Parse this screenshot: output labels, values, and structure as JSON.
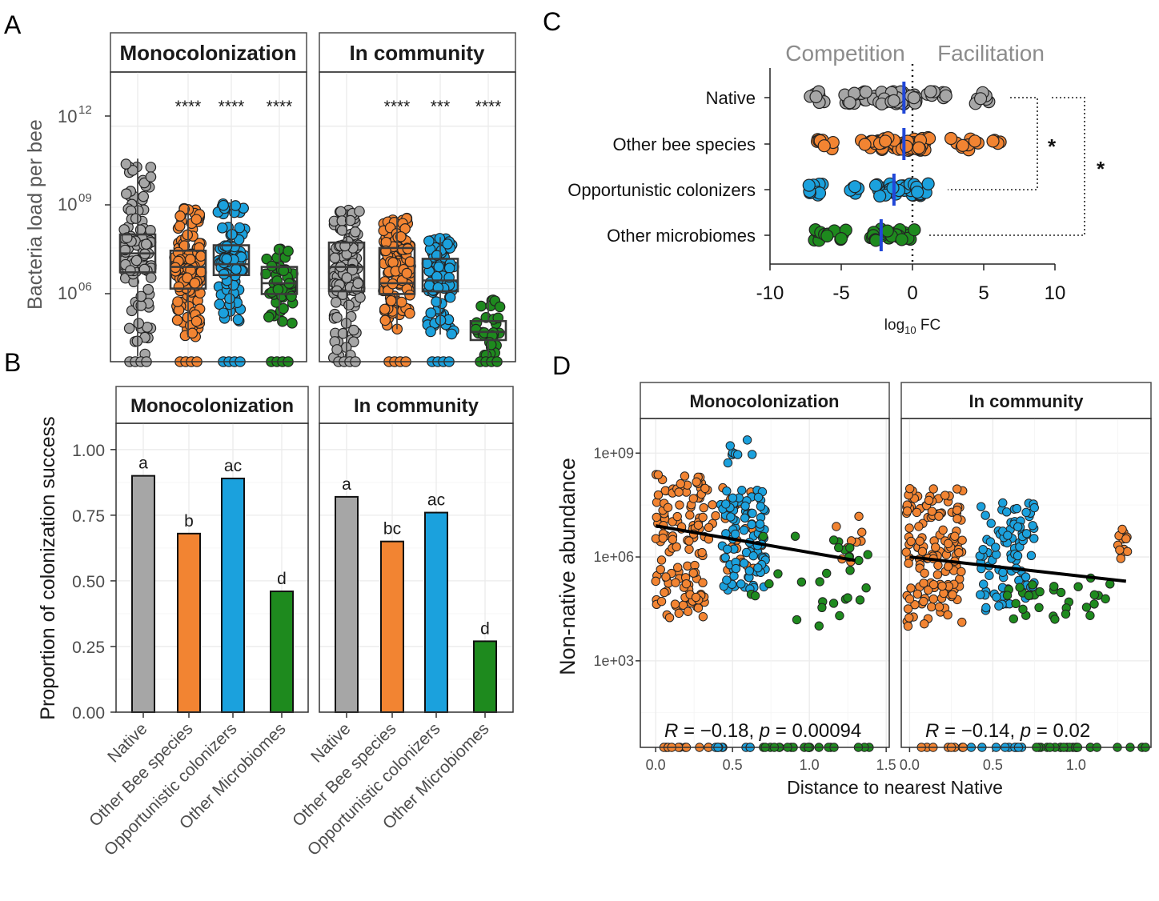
{
  "panel_letters": [
    "A",
    "B",
    "C",
    "D"
  ],
  "colors": {
    "Native": "#a6a6a6",
    "Other bee species": "#f28432",
    "Opportunistic colonizers": "#1ba1dd",
    "Other microbiomes": "#1e8a1e",
    "median_line": "#2147d8",
    "strip_fill": "#ffffff",
    "grid": "#ebebeb"
  },
  "chart_data": [
    {
      "id": "A",
      "type": "boxplot",
      "ylabel": "Bacteria load per bee",
      "yscale": "log10",
      "ytick_bases": [
        "10",
        "10",
        "10"
      ],
      "ytick_exps": [
        "12",
        "09",
        "06"
      ],
      "ylim_log10": [
        3.3,
        14.0
      ],
      "categories": [
        "Native",
        "Other bee species",
        "Opportunistic colonizers",
        "Other microbiomes"
      ],
      "facets": [
        {
          "name": "Monocolonization",
          "significance": [
            "",
            "****",
            "****",
            "****"
          ],
          "boxes_log10": [
            {
              "q1": 6.6,
              "median": 7.3,
              "q3": 8.0,
              "whisker_low": 3.5,
              "whisker_high": 10.8
            },
            {
              "q1": 6.0,
              "median": 6.8,
              "q3": 7.4,
              "whisker_low": 4.2,
              "whisker_high": 9.0
            },
            {
              "q1": 6.5,
              "median": 6.9,
              "q3": 7.6,
              "whisker_low": 4.8,
              "whisker_high": 9.3
            },
            {
              "q1": 5.8,
              "median": 6.2,
              "q3": 6.8,
              "whisker_low": 4.7,
              "whisker_high": 7.5
            }
          ]
        },
        {
          "name": "In community",
          "significance": [
            "",
            "****",
            "***",
            "****"
          ],
          "boxes_log10": [
            {
              "q1": 5.9,
              "median": 6.8,
              "q3": 7.7,
              "whisker_low": 3.4,
              "whisker_high": 8.9
            },
            {
              "q1": 5.8,
              "median": 6.2,
              "q3": 7.5,
              "whisker_low": 4.5,
              "whisker_high": 8.6
            },
            {
              "q1": 5.9,
              "median": 6.3,
              "q3": 7.1,
              "whisker_low": 4.3,
              "whisker_high": 7.9
            },
            {
              "q1": 4.1,
              "median": 4.4,
              "q3": 4.8,
              "whisker_low": 3.5,
              "whisker_high": 5.6
            }
          ]
        }
      ]
    },
    {
      "id": "B",
      "type": "bar",
      "ylabel": "Proportion of colonization success",
      "ylim": [
        0,
        1.1
      ],
      "yticks": [
        "0.00",
        "0.25",
        "0.50",
        "0.75",
        "1.00"
      ],
      "categories": [
        "Native",
        "Other Bee species",
        "Opportunistic colonizers",
        "Other Microbiomes"
      ],
      "facets": [
        {
          "name": "Monocolonization",
          "values": [
            0.9,
            0.68,
            0.89,
            0.46
          ],
          "letters": [
            "a",
            "b",
            "ac",
            "d"
          ]
        },
        {
          "name": "In community",
          "values": [
            0.82,
            0.65,
            0.76,
            0.27
          ],
          "letters": [
            "a",
            "bc",
            "ac",
            "d"
          ]
        }
      ]
    },
    {
      "id": "C",
      "type": "dotplot",
      "xlabel_main": "log",
      "xlabel_sub": "10",
      "xlabel_tail": " FC",
      "xlim": [
        -10,
        10
      ],
      "xticks": [
        "-10",
        "-5",
        "0",
        "5",
        "10"
      ],
      "left_header": "Competition",
      "right_header": "Facilitation",
      "categories": [
        "Native",
        "Other bee species",
        "Opportunistic colonizers",
        "Other microbiomes"
      ],
      "medians": [
        -0.6,
        -0.6,
        -1.3,
        -2.2
      ],
      "significance": [
        "*",
        "*"
      ]
    },
    {
      "id": "D",
      "type": "scatter",
      "xlabel": "Distance to nearest Native",
      "ylabel": "Non-native abundance",
      "yscale": "log10",
      "yticks": [
        "1e+09",
        "1e+06",
        "1e+03"
      ],
      "ylim_log10": [
        0.5,
        10.0
      ],
      "facets": [
        {
          "name": "Monocolonization",
          "xlim": [
            -0.1,
            1.52
          ],
          "xticks": [
            "0.0",
            "0.5",
            "1.0",
            "1.5"
          ],
          "R": "−0.18",
          "p": "0.00094",
          "regression": {
            "x": [
              0.0,
              1.3
            ],
            "y_log10": [
              6.9,
              5.9
            ]
          }
        },
        {
          "name": "In community",
          "xlim": [
            -0.05,
            1.45
          ],
          "xticks": [
            "0.0",
            "0.5",
            "1.0"
          ],
          "R": "−0.14",
          "p": "0.02",
          "regression": {
            "x": [
              0.0,
              1.3
            ],
            "y_log10": [
              6.0,
              5.3
            ]
          }
        }
      ]
    }
  ]
}
